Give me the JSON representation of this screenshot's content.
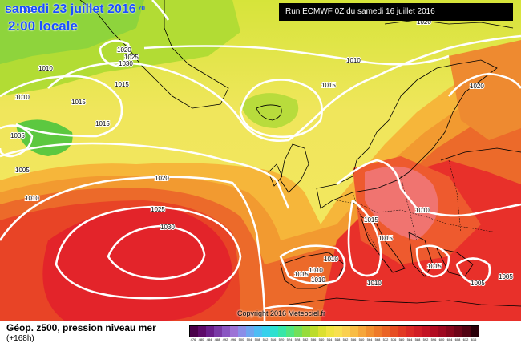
{
  "header": {
    "date": "samedi 23 juillet 2016",
    "time": "2:00 locale",
    "superscript": "70",
    "run": "Run ECMWF 0Z du samedi 16 juillet 2016"
  },
  "copyright": "Copyright 2016 Meteociel.fr",
  "legend": {
    "title": "Géop. z500, pression niveau mer",
    "subtitle": "(+168h)",
    "ticks": [
      "476",
      "480",
      "484",
      "488",
      "492",
      "496",
      "500",
      "504",
      "508",
      "512",
      "516",
      "520",
      "524",
      "528",
      "532",
      "536",
      "540",
      "544",
      "548",
      "552",
      "556",
      "560",
      "564",
      "568",
      "572",
      "576",
      "580",
      "584",
      "588",
      "592",
      "596",
      "600",
      "604",
      "608",
      "612",
      "616"
    ],
    "colors": [
      "#4a004a",
      "#5e0a6a",
      "#6a1e8a",
      "#7a3aa6",
      "#8a56c2",
      "#9c72d6",
      "#8a8ee8",
      "#6ea6f0",
      "#4ebcf4",
      "#36d0ec",
      "#2ee0d0",
      "#38e6a8",
      "#52e680",
      "#72e05a",
      "#96dc3c",
      "#bcdc2a",
      "#dce030",
      "#f0e440",
      "#f8e050",
      "#fad050",
      "#f8bc44",
      "#f6a63a",
      "#f29030",
      "#ee7a2a",
      "#ea6426",
      "#e64e24",
      "#e23a24",
      "#dc2a26",
      "#d21e26",
      "#c41424",
      "#b20c22",
      "#9e0820",
      "#88061c",
      "#6e0418",
      "#520212",
      "#2a000a"
    ]
  },
  "isobar_labels": [
    "1020",
    "1025",
    "1020",
    "1030",
    "1015",
    "1010",
    "1010",
    "1015",
    "1005",
    "1005",
    "1010",
    "1010",
    "1015",
    "1015",
    "1020",
    "1025",
    "1030",
    "1020",
    "1015",
    "1015",
    "1010",
    "1010",
    "1015",
    "1010",
    "1010",
    "1015",
    "1010",
    "1005",
    "1005",
    "1020"
  ]
}
